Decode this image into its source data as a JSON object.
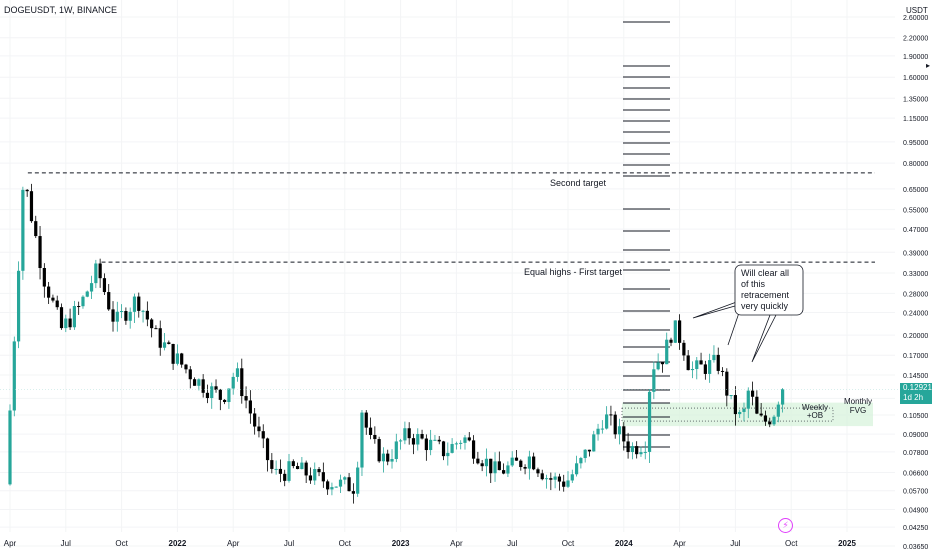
{
  "header": {
    "symbol_line": "DOGEUSDT, 1W, BINANCE",
    "currency": "USDT"
  },
  "price_badge": {
    "price": "0.12921",
    "countdown": "1d 2h"
  },
  "colors": {
    "up": "#26a69a",
    "down": "#000000",
    "zone_fill": "#d8f3dc",
    "background": "#ffffff",
    "text": "#131722"
  },
  "icons": {
    "bolt": "lightning-bolt-icon",
    "arrow": "scale-arrow-icon"
  },
  "chart_data": {
    "type": "candlestick",
    "symbol": "DOGEUSDT",
    "interval": "1W",
    "exchange": "BINANCE",
    "y_scale": "log",
    "ylim": [
      0.0345,
      2.7
    ],
    "y_ticks": [
      "2.60000",
      "2.20000",
      "1.90000",
      "1.60000",
      "1.35000",
      "1.15000",
      "0.95000",
      "0.80000",
      "0.65000",
      "0.55000",
      "0.47000",
      "0.39000",
      "0.33000",
      "0.28000",
      "0.24000",
      "0.20000",
      "0.17000",
      "0.14500",
      "0.12000",
      "0.10500",
      "0.09000",
      "0.07800",
      "0.06600",
      "0.05700",
      "0.04900",
      "0.04250",
      "0.03650"
    ],
    "x_ticks": [
      {
        "label": "Apr",
        "t": 2021.25
      },
      {
        "label": "Jul",
        "t": 2021.5
      },
      {
        "label": "Oct",
        "t": 2021.75
      },
      {
        "label": "2022",
        "t": 2022.0
      },
      {
        "label": "Apr",
        "t": 2022.25
      },
      {
        "label": "Jul",
        "t": 2022.5
      },
      {
        "label": "Oct",
        "t": 2022.75
      },
      {
        "label": "2023",
        "t": 2023.0
      },
      {
        "label": "Apr",
        "t": 2023.25
      },
      {
        "label": "Jul",
        "t": 2023.5
      },
      {
        "label": "Oct",
        "t": 2023.75
      },
      {
        "label": "2024",
        "t": 2024.0
      },
      {
        "label": "Apr",
        "t": 2024.25
      },
      {
        "label": "Jul",
        "t": 2024.5
      },
      {
        "label": "Oct",
        "t": 2024.75
      },
      {
        "label": "2025",
        "t": 2025.0
      }
    ],
    "last_price": 0.12921,
    "levels": [
      {
        "label": "Second target",
        "price": 0.74
      },
      {
        "label": "Equal highs - First target",
        "price": 0.36
      }
    ],
    "zones": [
      {
        "label": "Monthly FVG",
        "price_low": 0.096,
        "price_high": 0.116
      },
      {
        "label": "Weekly +OB",
        "price_low": 0.1,
        "price_high": 0.111
      }
    ],
    "annotation": "Will clear all of this retracement very quickly",
    "anchors": [
      {
        "t": 2021.25,
        "p": 0.06
      },
      {
        "t": 2021.33,
        "p": 0.72
      },
      {
        "t": 2021.42,
        "p": 0.32
      },
      {
        "t": 2021.5,
        "p": 0.21
      },
      {
        "t": 2021.58,
        "p": 0.25
      },
      {
        "t": 2021.66,
        "p": 0.34
      },
      {
        "t": 2021.74,
        "p": 0.22
      },
      {
        "t": 2021.84,
        "p": 0.27
      },
      {
        "t": 2021.92,
        "p": 0.2
      },
      {
        "t": 2022.0,
        "p": 0.17
      },
      {
        "t": 2022.1,
        "p": 0.14
      },
      {
        "t": 2022.22,
        "p": 0.12
      },
      {
        "t": 2022.28,
        "p": 0.15
      },
      {
        "t": 2022.38,
        "p": 0.09
      },
      {
        "t": 2022.45,
        "p": 0.065
      },
      {
        "t": 2022.55,
        "p": 0.068
      },
      {
        "t": 2022.65,
        "p": 0.063
      },
      {
        "t": 2022.75,
        "p": 0.06
      },
      {
        "t": 2022.82,
        "p": 0.059
      },
      {
        "t": 2022.84,
        "p": 0.115
      },
      {
        "t": 2022.88,
        "p": 0.085
      },
      {
        "t": 2022.95,
        "p": 0.073
      },
      {
        "t": 2023.05,
        "p": 0.09
      },
      {
        "t": 2023.12,
        "p": 0.085
      },
      {
        "t": 2023.22,
        "p": 0.078
      },
      {
        "t": 2023.3,
        "p": 0.088
      },
      {
        "t": 2023.38,
        "p": 0.075
      },
      {
        "t": 2023.45,
        "p": 0.066
      },
      {
        "t": 2023.53,
        "p": 0.07
      },
      {
        "t": 2023.6,
        "p": 0.075
      },
      {
        "t": 2023.68,
        "p": 0.063
      },
      {
        "t": 2023.76,
        "p": 0.061
      },
      {
        "t": 2023.82,
        "p": 0.07
      },
      {
        "t": 2023.88,
        "p": 0.085
      },
      {
        "t": 2023.93,
        "p": 0.105
      },
      {
        "t": 2024.0,
        "p": 0.09
      },
      {
        "t": 2024.05,
        "p": 0.08
      },
      {
        "t": 2024.12,
        "p": 0.085
      },
      {
        "t": 2024.14,
        "p": 0.155
      },
      {
        "t": 2024.2,
        "p": 0.17
      },
      {
        "t": 2024.24,
        "p": 0.215
      },
      {
        "t": 2024.28,
        "p": 0.19
      },
      {
        "t": 2024.32,
        "p": 0.15
      },
      {
        "t": 2024.38,
        "p": 0.155
      },
      {
        "t": 2024.44,
        "p": 0.16
      },
      {
        "t": 2024.5,
        "p": 0.115
      },
      {
        "t": 2024.55,
        "p": 0.1
      },
      {
        "t": 2024.58,
        "p": 0.13
      },
      {
        "t": 2024.62,
        "p": 0.1
      },
      {
        "t": 2024.66,
        "p": 0.1
      },
      {
        "t": 2024.7,
        "p": 0.11
      },
      {
        "t": 2024.72,
        "p": 0.129
      }
    ]
  }
}
